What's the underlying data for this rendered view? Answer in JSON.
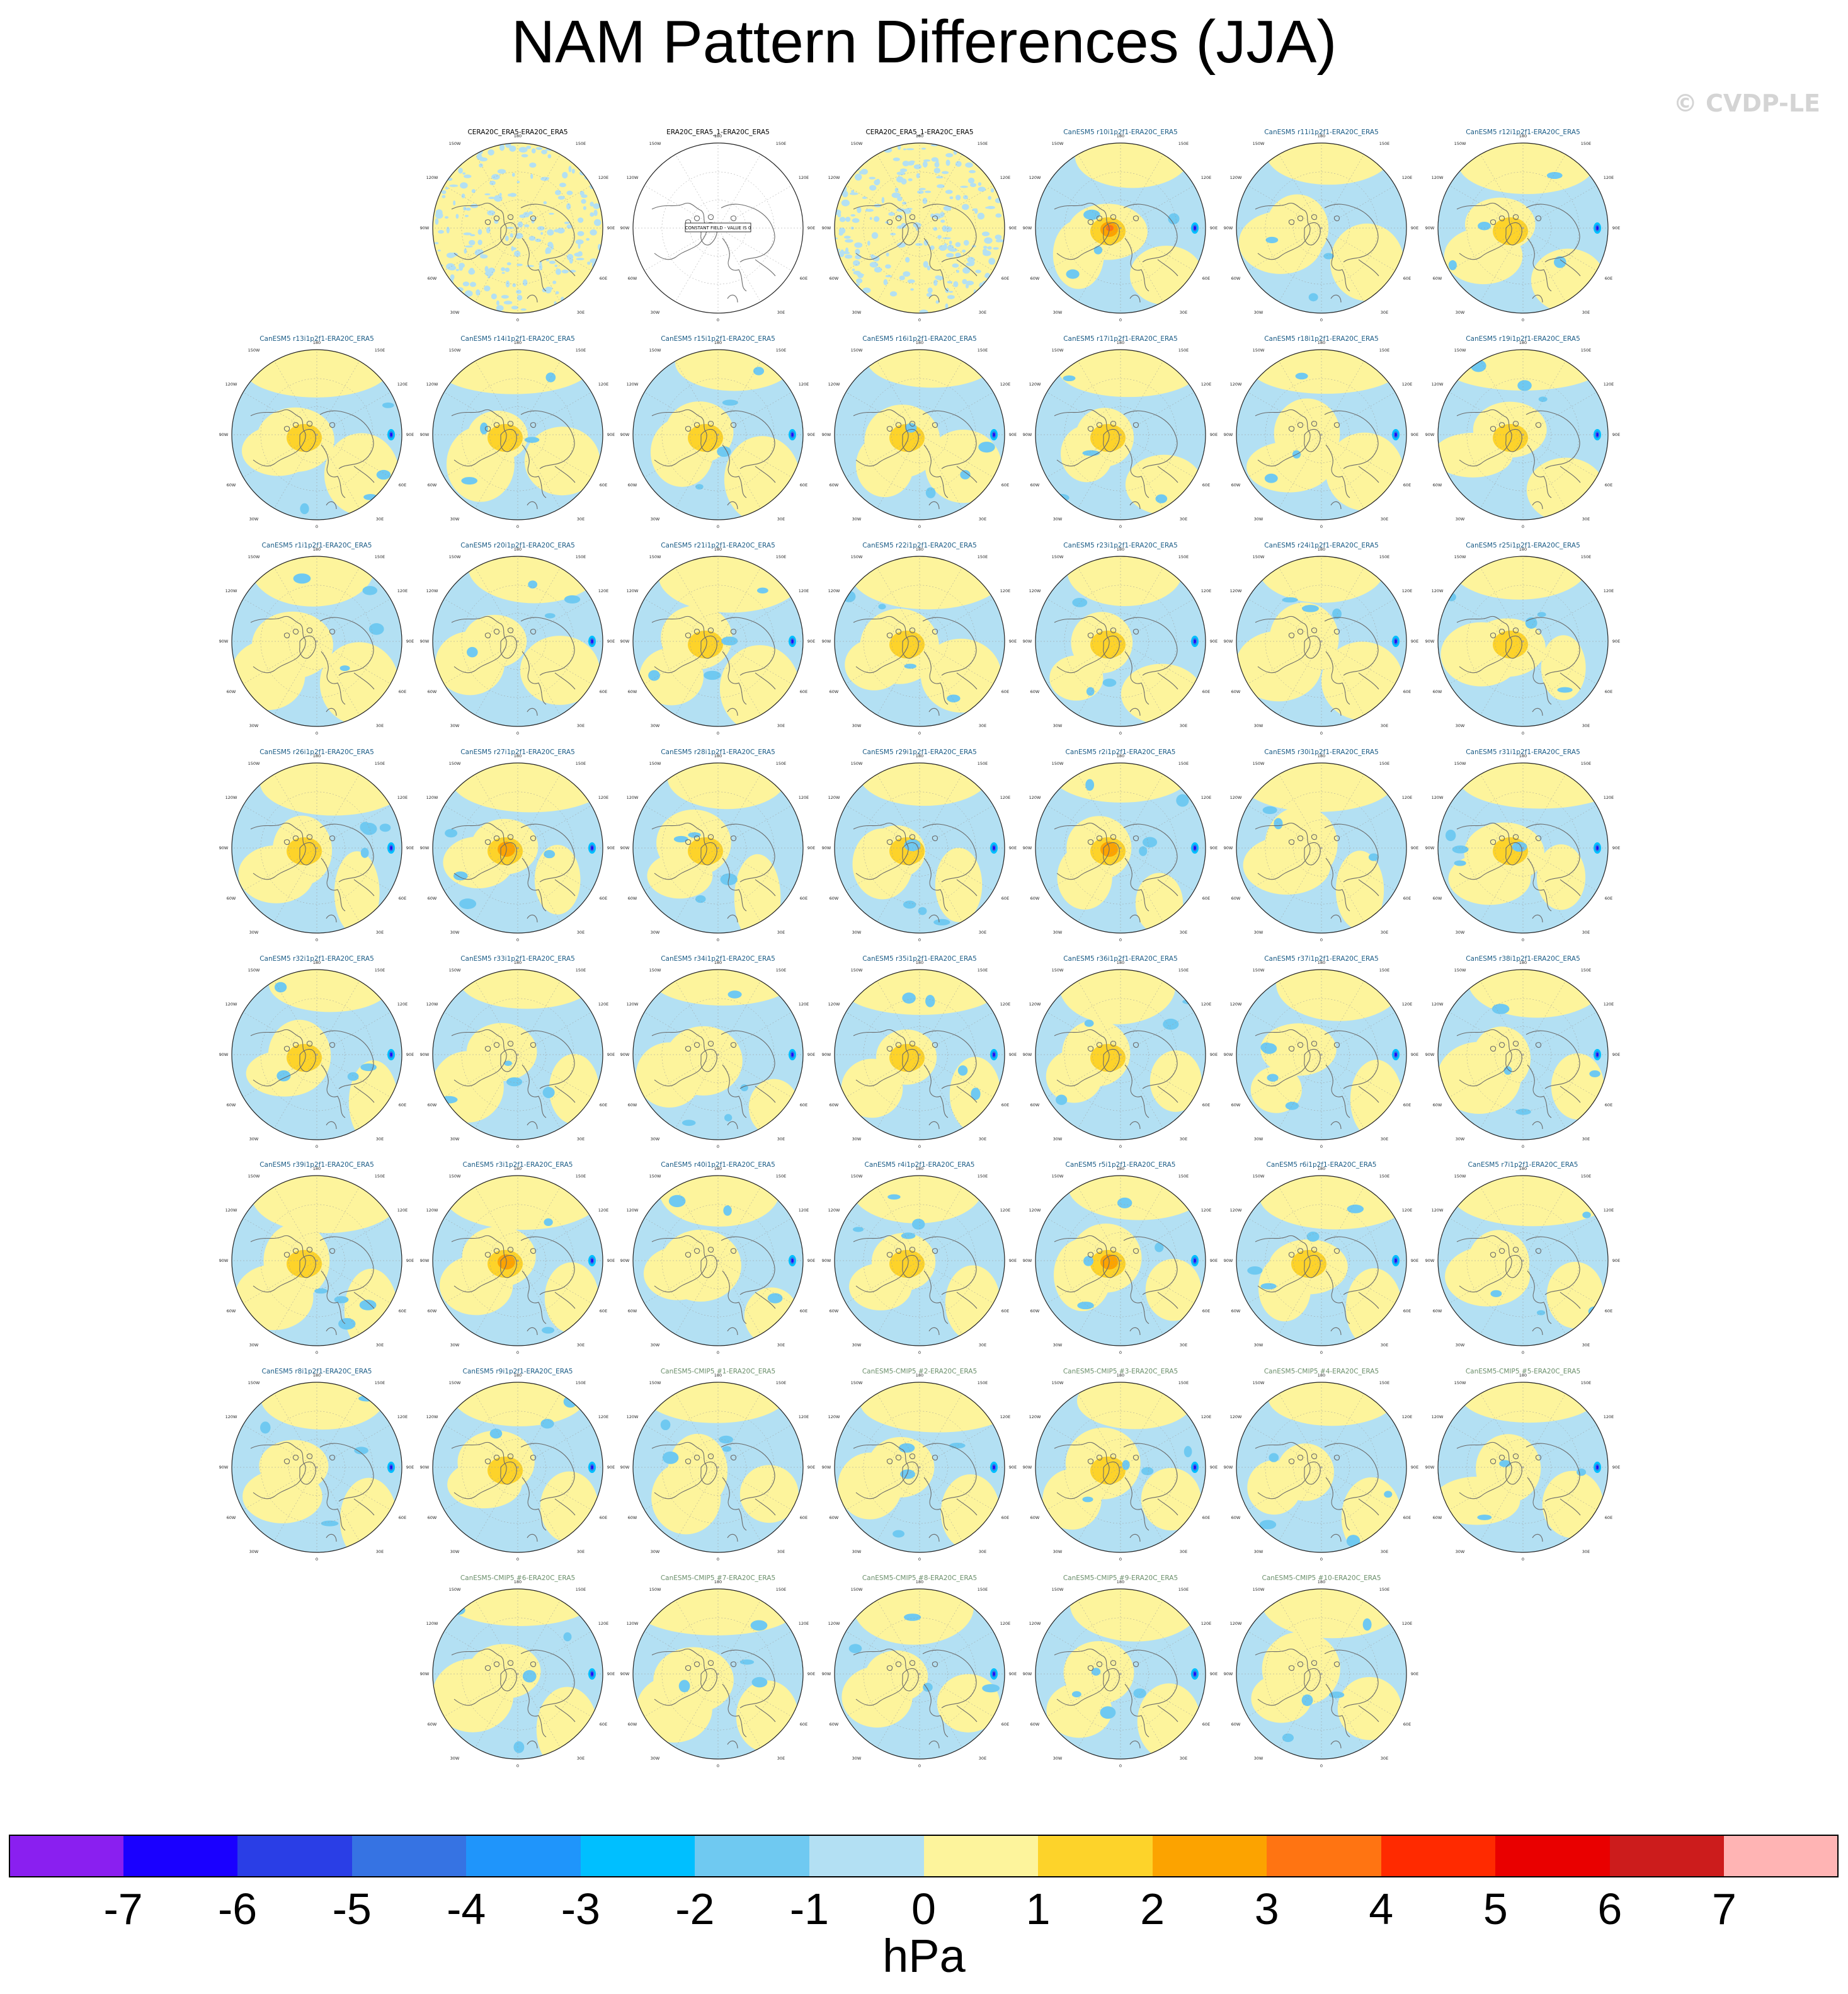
{
  "title": "NAM Pattern Differences (JJA)",
  "watermark": "© CVDP-LE",
  "colors": {
    "obs_title": "#000000",
    "model_title": "#1a5b85",
    "cmip_title": "#6b8f6b",
    "coast": "#6a6a6a",
    "grid": "#9a9a9a",
    "rim": "#222222"
  },
  "axis_labels": {
    "top": "180",
    "top_left": "150W",
    "top_right": "150E",
    "upper_left": "120W",
    "upper_right": "120E",
    "left": "90W",
    "right": "90E",
    "lower_left": "60W",
    "lower_right": "60E",
    "bottom_left": "30W",
    "bottom_right": "30E",
    "bottom": "0"
  },
  "chart_data": {
    "type": "heatmap",
    "map_projection": "polar stereographic, Northern Hemisphere",
    "units": "hPa",
    "colorbar": {
      "levels": [
        -7,
        -6,
        -5,
        -4,
        -3,
        -2,
        -1,
        0,
        1,
        2,
        3,
        4,
        5,
        6,
        7
      ],
      "tick_labels": [
        "-7",
        "-6",
        "-5",
        "-4",
        "-3",
        "-2",
        "-1",
        "0",
        "1",
        "2",
        "3",
        "4",
        "5",
        "6",
        "7"
      ],
      "colors": [
        "#8a1ff0",
        "#1a00ff",
        "#2a3ee6",
        "#3673e3",
        "#1f95fb",
        "#00bfff",
        "#6fc9f1",
        "#b3e0f3",
        "#fdf49c",
        "#fdd32a",
        "#fca300",
        "#ff7412",
        "#ff2a00",
        "#e90000",
        "#cc1c1c",
        "#ffb4b4"
      ],
      "label": "hPa"
    },
    "panels": [
      {
        "title": "CERA20C_ERA5-ERA20C_ERA5",
        "kind": "obs",
        "pattern": "noise",
        "max": 1
      },
      {
        "title": "ERA20C_ERA5_1-ERA20C_ERA5",
        "kind": "obs",
        "pattern": "blank",
        "max": 0,
        "note": "CONSTANT FIELD - VALUE IS 0"
      },
      {
        "title": "CERA20C_ERA5_1-ERA20C_ERA5",
        "kind": "obs",
        "pattern": "noise",
        "max": 1
      },
      {
        "title": "CanESM5 r10i1p2f1-ERA20C_ERA5",
        "kind": "model",
        "max": 4
      },
      {
        "title": "CanESM5 r11i1p2f1-ERA20C_ERA5",
        "kind": "model",
        "max": 1
      },
      {
        "title": "CanESM5 r12i1p2f1-ERA20C_ERA5",
        "kind": "model",
        "max": 2
      },
      {
        "title": "CanESM5 r13i1p2f1-ERA20C_ERA5",
        "kind": "model",
        "max": 2
      },
      {
        "title": "CanESM5 r14i1p2f1-ERA20C_ERA5",
        "kind": "model",
        "max": 2
      },
      {
        "title": "CanESM5 r15i1p2f1-ERA20C_ERA5",
        "kind": "model",
        "max": 2
      },
      {
        "title": "CanESM5 r16i1p2f1-ERA20C_ERA5",
        "kind": "model",
        "max": 2
      },
      {
        "title": "CanESM5 r17i1p2f1-ERA20C_ERA5",
        "kind": "model",
        "max": 2
      },
      {
        "title": "CanESM5 r18i1p2f1-ERA20C_ERA5",
        "kind": "model",
        "max": 1
      },
      {
        "title": "CanESM5 r19i1p2f1-ERA20C_ERA5",
        "kind": "model",
        "max": 2
      },
      {
        "title": "CanESM5 r1i1p2f1-ERA20C_ERA5",
        "kind": "model",
        "max": 1
      },
      {
        "title": "CanESM5 r20i1p2f1-ERA20C_ERA5",
        "kind": "model",
        "max": 1
      },
      {
        "title": "CanESM5 r21i1p2f1-ERA20C_ERA5",
        "kind": "model",
        "max": 2
      },
      {
        "title": "CanESM5 r22i1p2f1-ERA20C_ERA5",
        "kind": "model",
        "max": 2
      },
      {
        "title": "CanESM5 r23i1p2f1-ERA20C_ERA5",
        "kind": "model",
        "max": 2
      },
      {
        "title": "CanESM5 r24i1p2f1-ERA20C_ERA5",
        "kind": "model",
        "max": 1
      },
      {
        "title": "CanESM5 r25i1p2f1-ERA20C_ERA5",
        "kind": "model",
        "max": 2
      },
      {
        "title": "CanESM5 r26i1p2f1-ERA20C_ERA5",
        "kind": "model",
        "max": 2
      },
      {
        "title": "CanESM5 r27i1p2f1-ERA20C_ERA5",
        "kind": "model",
        "max": 3
      },
      {
        "title": "CanESM5 r28i1p2f1-ERA20C_ERA5",
        "kind": "model",
        "max": 2
      },
      {
        "title": "CanESM5 r29i1p2f1-ERA20C_ERA5",
        "kind": "model",
        "max": 2
      },
      {
        "title": "CanESM5 r2i1p2f1-ERA20C_ERA5",
        "kind": "model",
        "max": 3
      },
      {
        "title": "CanESM5 r30i1p2f1-ERA20C_ERA5",
        "kind": "model",
        "max": 1
      },
      {
        "title": "CanESM5 r31i1p2f1-ERA20C_ERA5",
        "kind": "model",
        "max": 2
      },
      {
        "title": "CanESM5 r32i1p2f1-ERA20C_ERA5",
        "kind": "model",
        "max": 2
      },
      {
        "title": "CanESM5 r33i1p2f1-ERA20C_ERA5",
        "kind": "model",
        "max": 1
      },
      {
        "title": "CanESM5 r34i1p2f1-ERA20C_ERA5",
        "kind": "model",
        "max": 1
      },
      {
        "title": "CanESM5 r35i1p2f1-ERA20C_ERA5",
        "kind": "model",
        "max": 2
      },
      {
        "title": "CanESM5 r36i1p2f1-ERA20C_ERA5",
        "kind": "model",
        "max": 2
      },
      {
        "title": "CanESM5 r37i1p2f1-ERA20C_ERA5",
        "kind": "model",
        "max": 1
      },
      {
        "title": "CanESM5 r38i1p2f1-ERA20C_ERA5",
        "kind": "model",
        "max": 1
      },
      {
        "title": "CanESM5 r39i1p2f1-ERA20C_ERA5",
        "kind": "model",
        "max": 2
      },
      {
        "title": "CanESM5 r3i1p2f1-ERA20C_ERA5",
        "kind": "model",
        "max": 3
      },
      {
        "title": "CanESM5 r40i1p2f1-ERA20C_ERA5",
        "kind": "model",
        "max": 1
      },
      {
        "title": "CanESM5 r4i1p2f1-ERA20C_ERA5",
        "kind": "model",
        "max": 2
      },
      {
        "title": "CanESM5 r5i1p2f1-ERA20C_ERA5",
        "kind": "model",
        "max": 3
      },
      {
        "title": "CanESM5 r6i1p2f1-ERA20C_ERA5",
        "kind": "model",
        "max": 2
      },
      {
        "title": "CanESM5 r7i1p2f1-ERA20C_ERA5",
        "kind": "model",
        "max": 1
      },
      {
        "title": "CanESM5 r8i1p2f1-ERA20C_ERA5",
        "kind": "model",
        "max": 1
      },
      {
        "title": "CanESM5 r9i1p2f1-ERA20C_ERA5",
        "kind": "model",
        "max": 2
      },
      {
        "title": "CanESM5-CMIP5 #1-ERA20C_ERA5",
        "kind": "cmip",
        "max": 1
      },
      {
        "title": "CanESM5-CMIP5 #2-ERA20C_ERA5",
        "kind": "cmip",
        "max": 1
      },
      {
        "title": "CanESM5-CMIP5 #3-ERA20C_ERA5",
        "kind": "cmip",
        "max": 2
      },
      {
        "title": "CanESM5-CMIP5 #4-ERA20C_ERA5",
        "kind": "cmip",
        "max": 1
      },
      {
        "title": "CanESM5-CMIP5 #5-ERA20C_ERA5",
        "kind": "cmip",
        "max": 1
      },
      {
        "title": "CanESM5-CMIP5 #6-ERA20C_ERA5",
        "kind": "cmip",
        "max": 1
      },
      {
        "title": "CanESM5-CMIP5 #7-ERA20C_ERA5",
        "kind": "cmip",
        "max": 1
      },
      {
        "title": "CanESM5-CMIP5 #8-ERA20C_ERA5",
        "kind": "cmip",
        "max": 1
      },
      {
        "title": "CanESM5-CMIP5 #9-ERA20C_ERA5",
        "kind": "cmip",
        "max": 1
      },
      {
        "title": "CanESM5-CMIP5 #10-ERA20C_ERA5",
        "kind": "cmip",
        "max": 1
      }
    ]
  }
}
